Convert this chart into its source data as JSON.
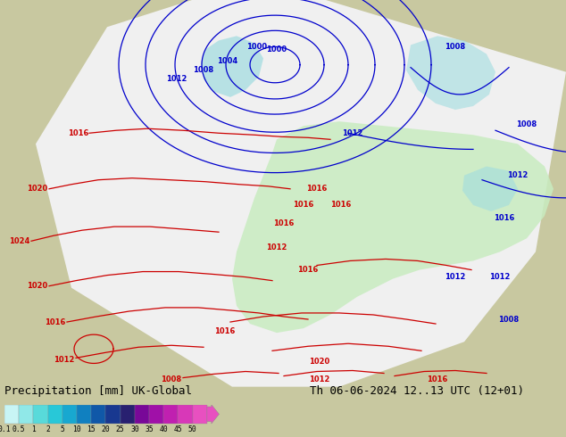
{
  "title_left": "Precipitation [mm] UK-Global",
  "title_right": "Th 06-06-2024 12..13 UTC (12+01)",
  "colorbar_levels": [
    "0.1",
    "0.5",
    "1",
    "2",
    "5",
    "10",
    "15",
    "20",
    "25",
    "30",
    "35",
    "40",
    "45",
    "50"
  ],
  "colorbar_colors": [
    "#c8f5f5",
    "#90e8e8",
    "#58dada",
    "#28c8d8",
    "#18a8d0",
    "#1080c0",
    "#1058a8",
    "#183890",
    "#282070",
    "#780898",
    "#a010a8",
    "#c020b0",
    "#d838b8",
    "#e850c0"
  ],
  "bg_color": "#c8c8a0",
  "land_color": "#c8c8a0",
  "sea_color": "#b8b890",
  "white_cone_color": "#f0f0f0",
  "green_precip_color": "#c8ecc0",
  "cyan_precip_color": "#a0dce0",
  "font_size_bottom": 9,
  "font_size_isobar": 6,
  "blue_isobar_color": "#0000cc",
  "red_isobar_color": "#cc0000"
}
